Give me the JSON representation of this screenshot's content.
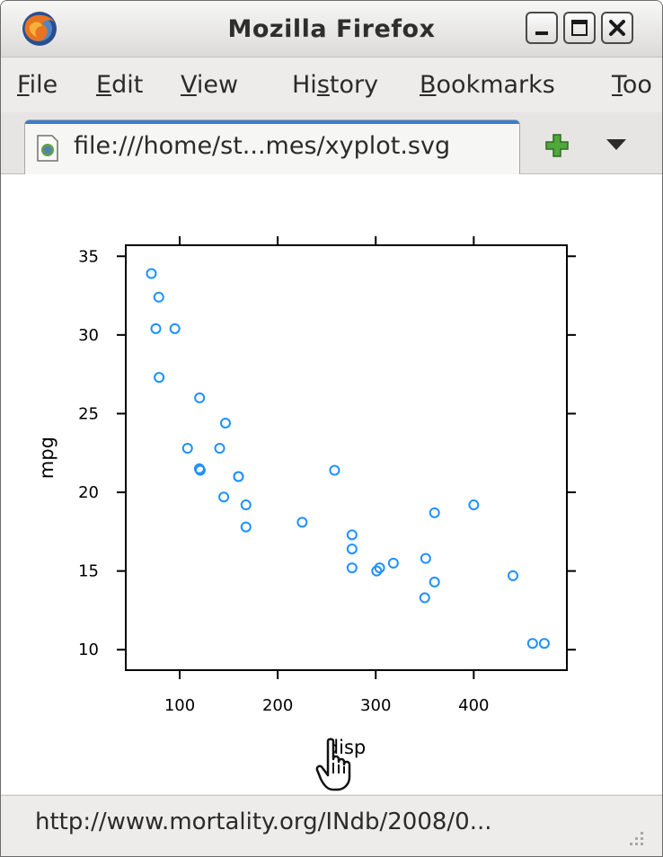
{
  "window": {
    "title": "Mozilla Firefox",
    "controls": {
      "minimize": "minimize-icon",
      "maximize": "maximize-icon",
      "close": "close-icon"
    }
  },
  "menu": {
    "file": {
      "mnemonic": "F",
      "rest": "ile"
    },
    "edit": {
      "mnemonic": "E",
      "rest": "dit"
    },
    "view": {
      "mnemonic": "V",
      "rest": "iew"
    },
    "history": {
      "pre": "Hi",
      "mnemonic": "s",
      "rest": "tory"
    },
    "bookmarks": {
      "mnemonic": "B",
      "rest": "ookmarks"
    },
    "tools": {
      "mnemonic": "T",
      "rest": "oo"
    }
  },
  "tabs": [
    {
      "label": "file:///home/st...mes/xyplot.svg",
      "icon": "file-icon",
      "active": true
    }
  ],
  "status": {
    "text": "http://www.mortality.org/INdb/2008/0..."
  },
  "colors": {
    "point": "#1e90ff",
    "axis": "#000000",
    "tab_accent": "#3c7ec8"
  },
  "chart_data": {
    "type": "scatter",
    "xlabel": "disp",
    "ylabel": "mpg",
    "xlim": [
      45,
      495
    ],
    "ylim": [
      8.7,
      35.7
    ],
    "xticks": [
      100,
      200,
      300,
      400
    ],
    "yticks": [
      10,
      15,
      20,
      25,
      30,
      35
    ],
    "grid": false,
    "points": [
      {
        "x": 71.1,
        "y": 33.9
      },
      {
        "x": 78.7,
        "y": 32.4
      },
      {
        "x": 75.7,
        "y": 30.4
      },
      {
        "x": 95.1,
        "y": 30.4
      },
      {
        "x": 79.0,
        "y": 27.3
      },
      {
        "x": 120.3,
        "y": 26.0
      },
      {
        "x": 146.7,
        "y": 24.4
      },
      {
        "x": 108.0,
        "y": 22.8
      },
      {
        "x": 140.8,
        "y": 22.8
      },
      {
        "x": 120.1,
        "y": 21.5
      },
      {
        "x": 121.0,
        "y": 21.4
      },
      {
        "x": 160.0,
        "y": 21.0
      },
      {
        "x": 160.0,
        "y": 21.0
      },
      {
        "x": 258.0,
        "y": 21.4
      },
      {
        "x": 145.0,
        "y": 19.7
      },
      {
        "x": 167.6,
        "y": 19.2
      },
      {
        "x": 167.6,
        "y": 17.8
      },
      {
        "x": 225.0,
        "y": 18.1
      },
      {
        "x": 275.8,
        "y": 17.3
      },
      {
        "x": 275.8,
        "y": 16.4
      },
      {
        "x": 275.8,
        "y": 15.2
      },
      {
        "x": 304.0,
        "y": 15.2
      },
      {
        "x": 301.0,
        "y": 15.0
      },
      {
        "x": 318.0,
        "y": 15.5
      },
      {
        "x": 351.0,
        "y": 15.8
      },
      {
        "x": 360.0,
        "y": 18.7
      },
      {
        "x": 400.0,
        "y": 19.2
      },
      {
        "x": 360.0,
        "y": 14.3
      },
      {
        "x": 350.0,
        "y": 13.3
      },
      {
        "x": 440.0,
        "y": 14.7
      },
      {
        "x": 460.0,
        "y": 10.4
      },
      {
        "x": 472.0,
        "y": 10.4
      }
    ]
  }
}
